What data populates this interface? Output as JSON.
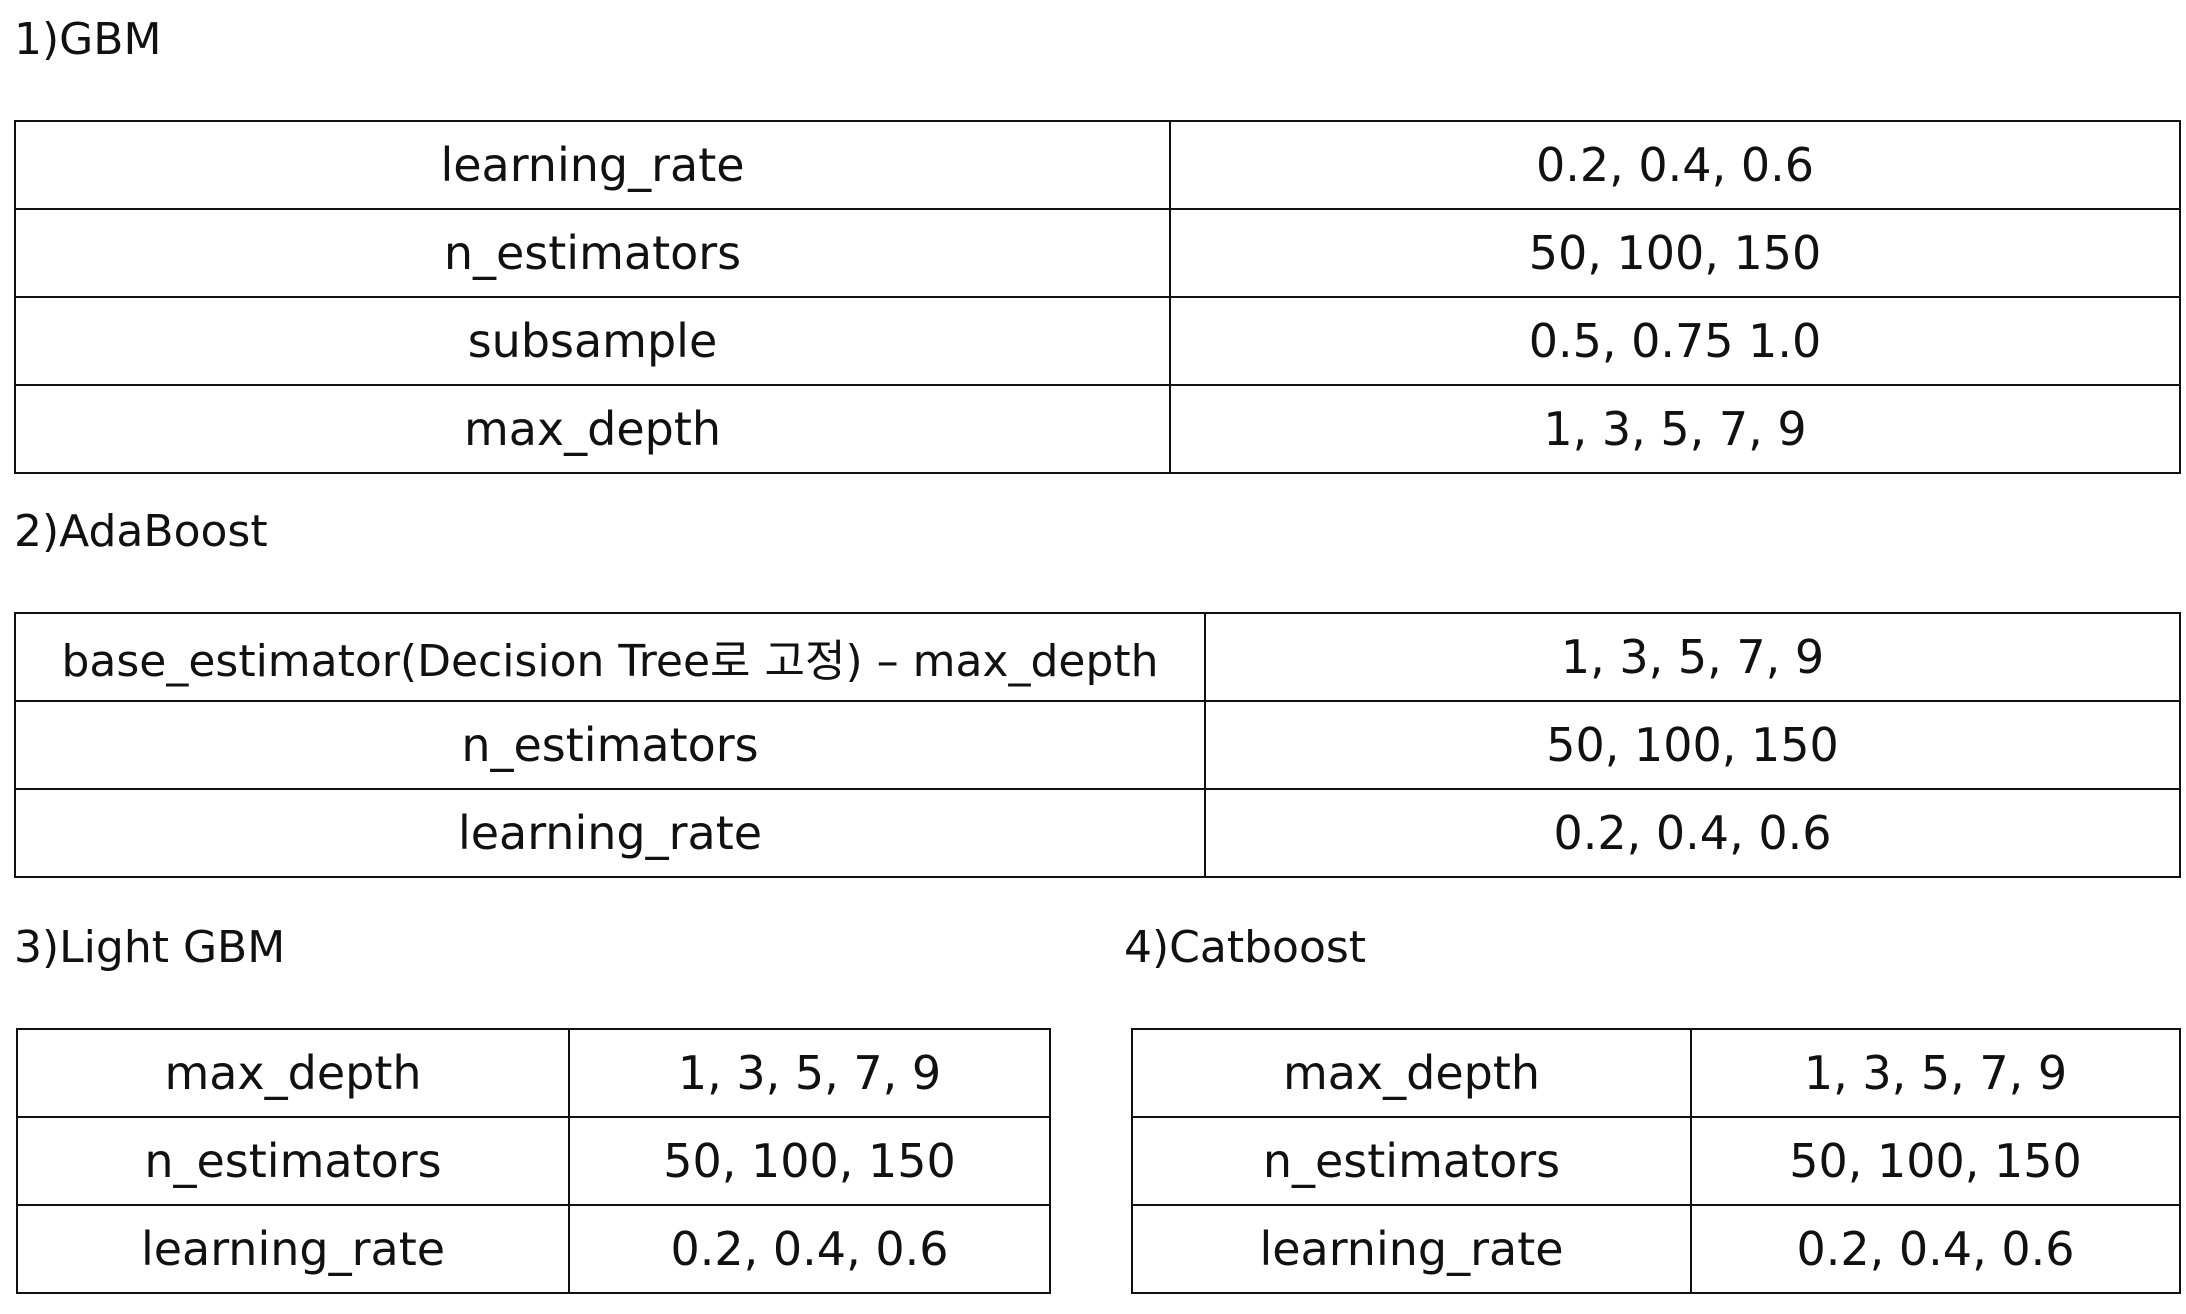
{
  "sections": [
    {
      "heading": "1)GBM",
      "rows": [
        {
          "param": "learning_rate",
          "values": "0.2, 0.4, 0.6"
        },
        {
          "param": "n_estimators",
          "values": "50, 100, 150"
        },
        {
          "param": "subsample",
          "values": "0.5, 0.75 1.0"
        },
        {
          "param": "max_depth",
          "values": "1, 3, 5, 7, 9"
        }
      ]
    },
    {
      "heading": "2)AdaBoost",
      "rows": [
        {
          "param": "base_estimator(Decision Tree로  고정) – max_depth",
          "values": "1, 3, 5, 7, 9"
        },
        {
          "param": "n_estimators",
          "values": "50, 100, 150"
        },
        {
          "param": "learning_rate",
          "values": "0.2, 0.4, 0.6"
        }
      ]
    },
    {
      "heading": "3)Light GBM",
      "rows": [
        {
          "param": "max_depth",
          "values": "1, 3, 5, 7, 9"
        },
        {
          "param": "n_estimators",
          "values": "50, 100, 150"
        },
        {
          "param": "learning_rate",
          "values": "0.2, 0.4, 0.6"
        }
      ]
    },
    {
      "heading": "4)Catboost",
      "rows": [
        {
          "param": "max_depth",
          "values": "1, 3, 5, 7, 9"
        },
        {
          "param": "n_estimators",
          "values": "50, 100, 150"
        },
        {
          "param": "learning_rate",
          "values": "0.2, 0.4, 0.6"
        }
      ]
    }
  ]
}
